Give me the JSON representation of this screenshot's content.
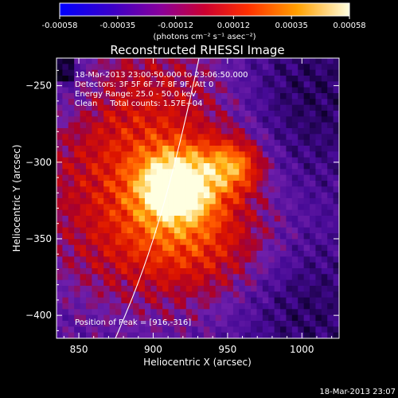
{
  "chart_data": {
    "type": "heatmap",
    "title": "Reconstructed RHESSI Image",
    "xlabel": "Heliocentric X (arcsec)",
    "ylabel": "Heliocentric Y (arcsec)",
    "xlim": [
      835,
      1025
    ],
    "ylim": [
      -415,
      -232
    ],
    "x_ticks": [
      850,
      900,
      950,
      1000
    ],
    "y_ticks": [
      -400,
      -350,
      -300,
      -250
    ],
    "colorbar": {
      "min": -0.00058,
      "max": 0.00058,
      "ticks": [
        "-0.00058",
        "-0.00035",
        "-0.00012",
        "0.00012",
        "0.00035",
        "0.00058"
      ],
      "label": "(photons cm⁻² s⁻¹ asec⁻²)"
    },
    "annotations": [
      "18-Mar-2013 23:00:50.000 to 23:06:50.000",
      "Detectors: 3F 5F 6F 7F 8F 9F, Att 0",
      "Energy Range: 25.0 - 50.0 keV",
      "Clean     Total counts: 1.57E+04"
    ],
    "peak_label": "Position of Peak = [916,-316]",
    "peak": [
      916,
      -316
    ],
    "footer_time": "18-Mar-2013 23:07"
  }
}
